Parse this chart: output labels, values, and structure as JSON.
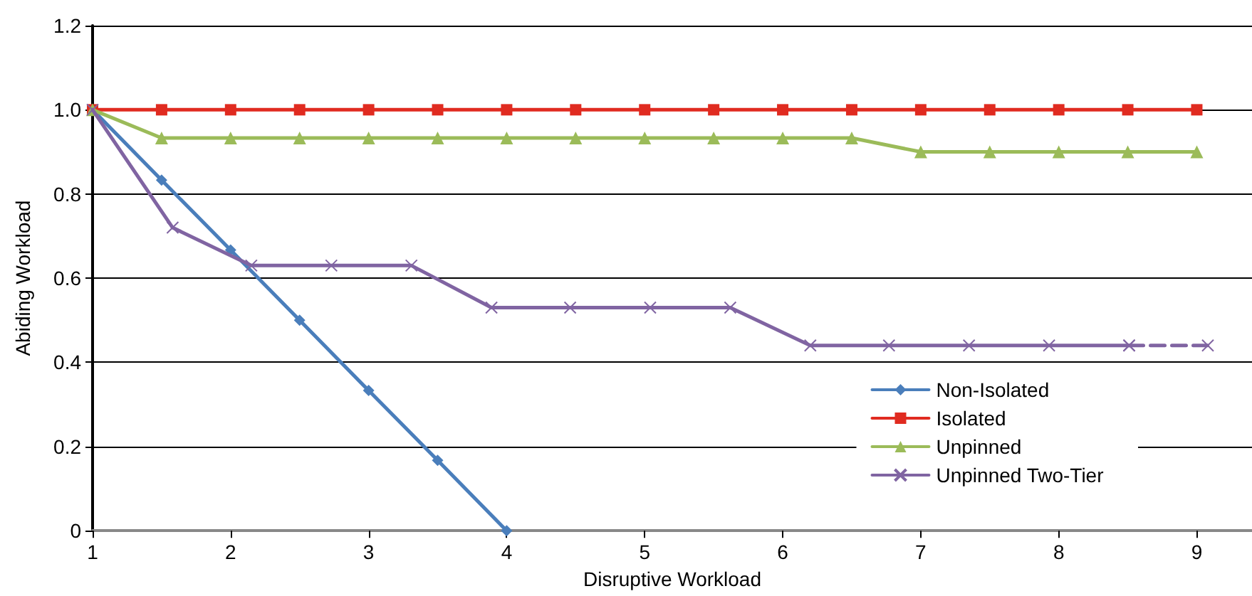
{
  "chart_data": {
    "type": "line",
    "xlabel": "Disruptive Workload",
    "ylabel": "Abiding Workload",
    "xlim": [
      1,
      9.4
    ],
    "xticks": [
      1,
      2,
      3,
      4,
      5,
      6,
      7,
      8,
      9
    ],
    "ylim": [
      0,
      1.2
    ],
    "yticks": [
      0,
      0.2,
      0.4,
      0.6,
      0.8,
      {
        "value": 1,
        "label": "1.0"
      },
      1.2
    ],
    "grid": "y",
    "legend": "bottom right",
    "line_style": "solid",
    "series": [
      {
        "name": "Non-Isolated",
        "color": "#4a7ebb",
        "marker": "diamond",
        "x": [
          1,
          1.5,
          2,
          2.5,
          3,
          3.5,
          4
        ],
        "values": [
          1,
          0.833,
          0.667,
          0.5,
          0.333,
          0.167,
          0
        ]
      },
      {
        "name": "Isolated",
        "color": "#e02b20",
        "marker": "square",
        "x": [
          1,
          1.5,
          2,
          2.5,
          3,
          3.5,
          4,
          4.5,
          5,
          5.5,
          6,
          6.5,
          7,
          7.5,
          8,
          8.5,
          9
        ],
        "values": [
          1,
          1,
          1,
          1,
          1,
          1,
          1,
          1,
          1,
          1,
          1,
          1,
          1,
          1,
          1,
          1,
          1
        ]
      },
      {
        "name": "Unpinned",
        "color": "#9bbb59",
        "marker": "triangle",
        "x": [
          1,
          1.5,
          2,
          2.5,
          3,
          3.5,
          4,
          4.5,
          5,
          5.5,
          6,
          6.5,
          7,
          7.5,
          8,
          8.5,
          9
        ],
        "values": [
          1,
          0.933,
          0.933,
          0.933,
          0.933,
          0.933,
          0.933,
          0.933,
          0.933,
          0.933,
          0.933,
          0.933,
          0.9,
          0.9,
          0.9,
          0.9,
          0.9
        ]
      },
      {
        "name": "Unpinned Two-Tier",
        "color": "#8064a2",
        "marker": "cross",
        "x": [
          1,
          1.58,
          2.15,
          2.73,
          3.31,
          3.89,
          4.46,
          5.04,
          5.62,
          6.2,
          6.77,
          7.35,
          7.93,
          8.51
        ],
        "values": [
          1,
          0.72,
          0.63,
          0.63,
          0.63,
          0.53,
          0.53,
          0.53,
          0.53,
          0.44,
          0.44,
          0.44,
          0.44,
          0.44
        ]
      },
      {
        "color": "#8064a2",
        "marker": "cross",
        "line_style": "dashed",
        "x": [
          8.51,
          9.08
        ],
        "values": [
          0.44,
          0.44
        ]
      }
    ]
  }
}
